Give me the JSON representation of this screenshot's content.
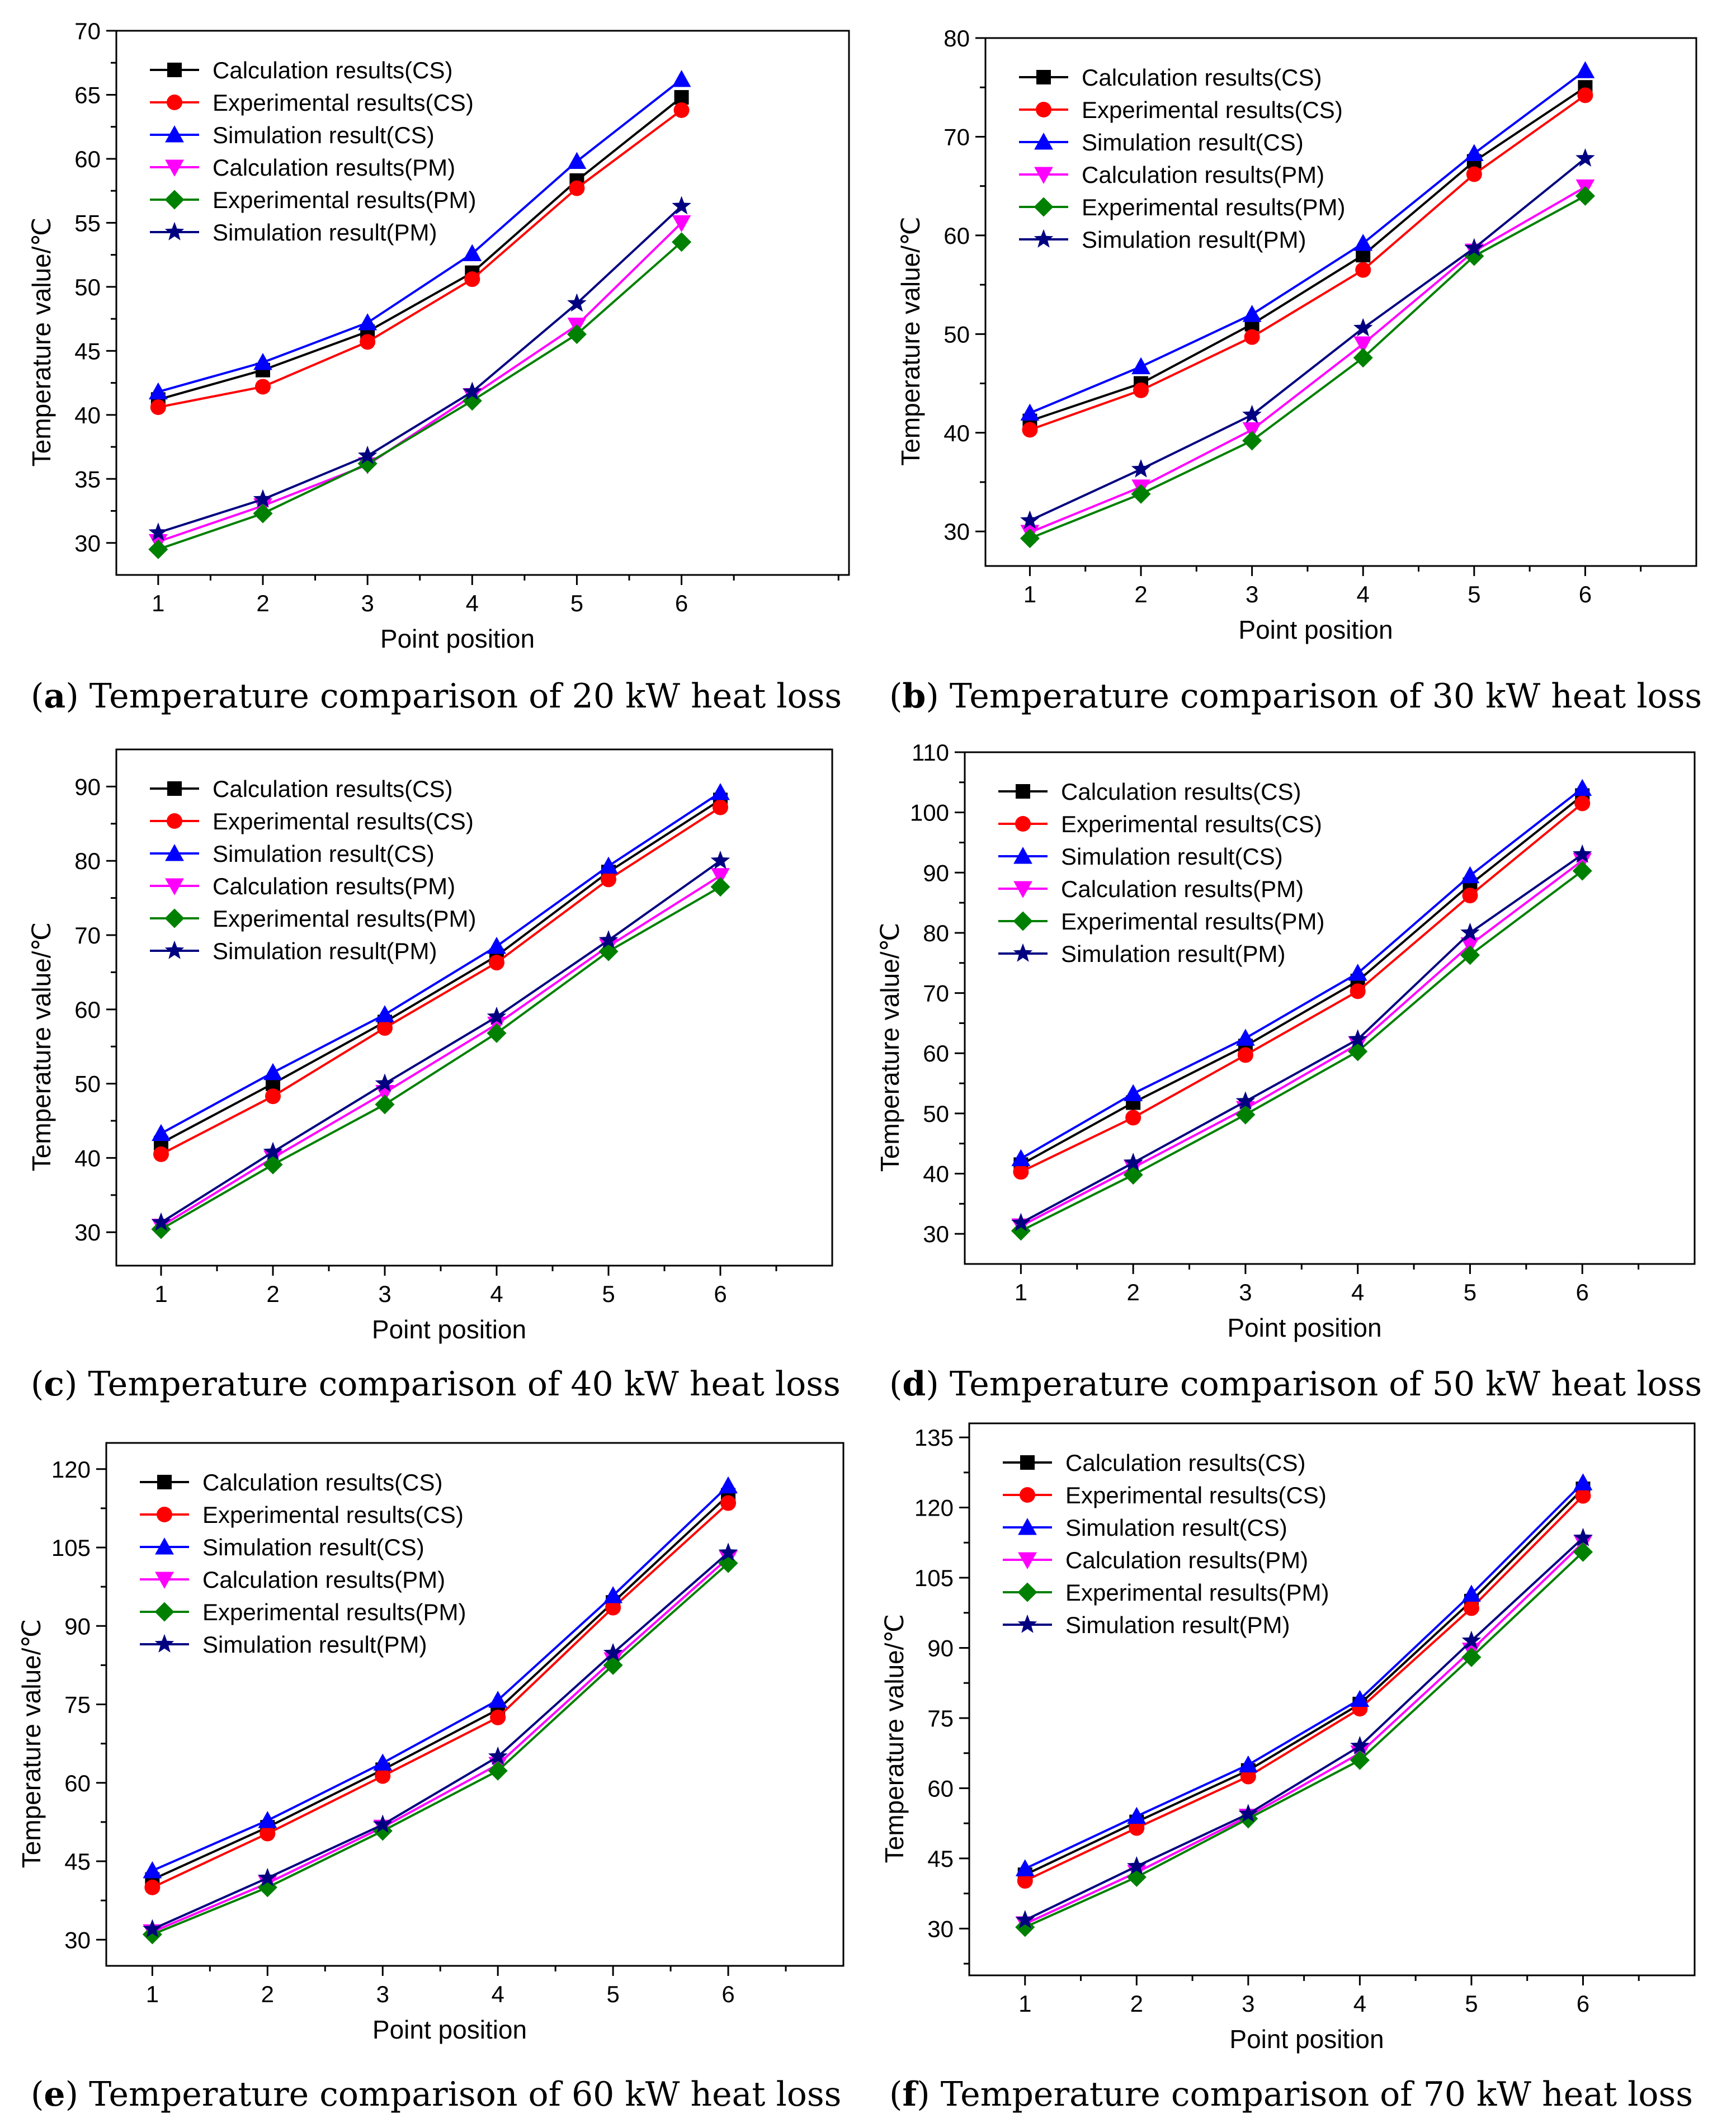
{
  "colors": {
    "calc_cs": "#000000",
    "exp_cs": "#ff0000",
    "sim_cs": "#0000ff",
    "calc_pm": "#ff00ff",
    "exp_pm": "#008000",
    "sim_pm": "#000080"
  },
  "chart_data": [
    {
      "type": "line",
      "caption_letter": "a",
      "caption_text": "Temperature comparison of 20 kW heat loss",
      "xlabel": "Point position",
      "ylabel": "Temperature value/℃",
      "x": [
        1,
        2,
        3,
        4,
        5,
        6
      ],
      "xlim": [
        0.6,
        7.6
      ],
      "ylim": [
        27.5,
        70
      ],
      "yticks": [
        30,
        35,
        40,
        45,
        50,
        55,
        60,
        65,
        70
      ],
      "legend_position": "top-left",
      "series": [
        {
          "name": "Calculation results(CS)",
          "marker": "square",
          "color_key": "calc_cs",
          "values": [
            41.2,
            43.5,
            46.5,
            51.1,
            58.3,
            64.8
          ]
        },
        {
          "name": "Experimental results(CS)",
          "marker": "circle",
          "color_key": "exp_cs",
          "values": [
            40.6,
            42.2,
            45.7,
            50.6,
            57.7,
            63.8
          ]
        },
        {
          "name": "Simulation result(CS)",
          "marker": "triangle-up",
          "color_key": "sim_cs",
          "values": [
            41.8,
            44.1,
            47.2,
            52.6,
            59.8,
            66.2
          ]
        },
        {
          "name": "Calculation results(PM)",
          "marker": "triangle-down",
          "color_key": "calc_pm",
          "values": [
            30.1,
            32.9,
            36.1,
            41.5,
            47.0,
            55.0
          ]
        },
        {
          "name": "Experimental results(PM)",
          "marker": "diamond",
          "color_key": "exp_pm",
          "values": [
            29.5,
            32.3,
            36.2,
            41.1,
            46.3,
            53.5
          ]
        },
        {
          "name": "Simulation result(PM)",
          "marker": "star",
          "color_key": "sim_pm",
          "values": [
            30.8,
            33.4,
            36.8,
            41.8,
            48.7,
            56.3
          ]
        }
      ]
    },
    {
      "type": "line",
      "caption_letter": "b",
      "caption_text": "Temperature comparison of 30 kW heat loss",
      "xlabel": "Point position",
      "ylabel": "Temperature value/℃",
      "x": [
        1,
        2,
        3,
        4,
        5,
        6
      ],
      "xlim": [
        0.6,
        7.0
      ],
      "ylim": [
        26.5,
        80
      ],
      "yticks": [
        30,
        40,
        50,
        60,
        70,
        80
      ],
      "legend_position": "top-left",
      "series": [
        {
          "name": "Calculation results(CS)",
          "marker": "square",
          "color_key": "calc_cs",
          "values": [
            41.2,
            45.0,
            51.0,
            58.0,
            67.5,
            75.0
          ]
        },
        {
          "name": "Experimental results(CS)",
          "marker": "circle",
          "color_key": "exp_cs",
          "values": [
            40.3,
            44.3,
            49.7,
            56.5,
            66.2,
            74.2
          ]
        },
        {
          "name": "Simulation result(CS)",
          "marker": "triangle-up",
          "color_key": "sim_cs",
          "values": [
            42.0,
            46.7,
            52.0,
            59.2,
            68.3,
            76.7
          ]
        },
        {
          "name": "Calculation results(PM)",
          "marker": "triangle-down",
          "color_key": "calc_pm",
          "values": [
            29.9,
            34.5,
            40.3,
            49.0,
            58.4,
            64.9
          ]
        },
        {
          "name": "Experimental results(PM)",
          "marker": "diamond",
          "color_key": "exp_pm",
          "values": [
            29.3,
            33.8,
            39.2,
            47.6,
            57.9,
            64.0
          ]
        },
        {
          "name": "Simulation result(PM)",
          "marker": "star",
          "color_key": "sim_pm",
          "values": [
            31.1,
            36.3,
            41.8,
            50.6,
            58.7,
            67.8
          ]
        }
      ]
    },
    {
      "type": "line",
      "caption_letter": "c",
      "caption_text": "Temperature comparison of 40 kW heat loss",
      "xlabel": "Point position",
      "ylabel": "Temperature value/℃",
      "x": [
        1,
        2,
        3,
        4,
        5,
        6
      ],
      "xlim": [
        0.6,
        7.0
      ],
      "ylim": [
        25.5,
        95
      ],
      "yticks": [
        30,
        40,
        50,
        60,
        70,
        80,
        90
      ],
      "legend_position": "top-left",
      "series": [
        {
          "name": "Calculation results(CS)",
          "marker": "square",
          "color_key": "calc_cs",
          "values": [
            42.0,
            50.0,
            58.3,
            67.2,
            78.5,
            88.2
          ]
        },
        {
          "name": "Experimental results(CS)",
          "marker": "circle",
          "color_key": "exp_cs",
          "values": [
            40.5,
            48.3,
            57.5,
            66.3,
            77.5,
            87.2
          ]
        },
        {
          "name": "Simulation result(CS)",
          "marker": "triangle-up",
          "color_key": "sim_cs",
          "values": [
            43.3,
            51.5,
            59.3,
            68.5,
            79.3,
            89.2
          ]
        },
        {
          "name": "Calculation results(PM)",
          "marker": "triangle-down",
          "color_key": "calc_pm",
          "values": [
            30.8,
            40.0,
            48.8,
            58.0,
            68.5,
            78.0
          ]
        },
        {
          "name": "Experimental results(PM)",
          "marker": "diamond",
          "color_key": "exp_pm",
          "values": [
            30.4,
            39.1,
            47.2,
            56.8,
            67.8,
            76.5
          ]
        },
        {
          "name": "Simulation result(PM)",
          "marker": "star",
          "color_key": "sim_pm",
          "values": [
            31.3,
            40.8,
            50.0,
            59.0,
            69.3,
            80.0
          ]
        }
      ]
    },
    {
      "type": "line",
      "caption_letter": "d",
      "caption_text": "Temperature comparison of 50 kW heat loss",
      "xlabel": "Point position",
      "ylabel": "Temperature value/℃",
      "x": [
        1,
        2,
        3,
        4,
        5,
        6
      ],
      "xlim": [
        0.5,
        7.0
      ],
      "ylim": [
        25,
        110
      ],
      "yticks": [
        30,
        40,
        50,
        60,
        70,
        80,
        90,
        100,
        110
      ],
      "legend_position": "top-left",
      "series": [
        {
          "name": "Calculation results(CS)",
          "marker": "square",
          "color_key": "calc_cs",
          "values": [
            41.5,
            51.8,
            61.2,
            72.0,
            88.0,
            102.8
          ]
        },
        {
          "name": "Experimental results(CS)",
          "marker": "circle",
          "color_key": "exp_cs",
          "values": [
            40.3,
            49.3,
            59.7,
            70.3,
            86.2,
            101.5
          ]
        },
        {
          "name": "Simulation result(CS)",
          "marker": "triangle-up",
          "color_key": "sim_cs",
          "values": [
            42.5,
            53.3,
            62.5,
            73.3,
            89.5,
            104.0
          ]
        },
        {
          "name": "Calculation results(PM)",
          "marker": "triangle-down",
          "color_key": "calc_pm",
          "values": [
            31.3,
            41.0,
            50.8,
            61.5,
            78.0,
            92.0
          ]
        },
        {
          "name": "Experimental results(PM)",
          "marker": "diamond",
          "color_key": "exp_pm",
          "values": [
            30.5,
            39.8,
            49.8,
            60.3,
            76.3,
            90.3
          ]
        },
        {
          "name": "Simulation result(PM)",
          "marker": "star",
          "color_key": "sim_pm",
          "values": [
            31.8,
            41.8,
            52.0,
            62.3,
            80.0,
            93.0
          ]
        }
      ]
    },
    {
      "type": "line",
      "caption_letter": "e",
      "caption_text": "Temperature comparison of 60 kW heat loss",
      "xlabel": "Point position",
      "ylabel": "Temperature value/℃",
      "x": [
        1,
        2,
        3,
        4,
        5,
        6
      ],
      "xlim": [
        0.6,
        7.0
      ],
      "ylim": [
        25,
        125
      ],
      "yticks": [
        30,
        45,
        60,
        75,
        90,
        105,
        120
      ],
      "legend_position": "top-left",
      "series": [
        {
          "name": "Calculation results(CS)",
          "marker": "square",
          "color_key": "calc_cs",
          "values": [
            41.5,
            51.5,
            62.5,
            74.0,
            94.5,
            115.0
          ]
        },
        {
          "name": "Experimental results(CS)",
          "marker": "circle",
          "color_key": "exp_cs",
          "values": [
            40.0,
            50.3,
            61.3,
            72.5,
            93.5,
            113.5
          ]
        },
        {
          "name": "Simulation result(CS)",
          "marker": "triangle-up",
          "color_key": "sim_cs",
          "values": [
            43.2,
            52.8,
            63.8,
            75.8,
            95.8,
            116.8
          ]
        },
        {
          "name": "Calculation results(PM)",
          "marker": "triangle-down",
          "color_key": "calc_pm",
          "values": [
            31.5,
            40.8,
            51.5,
            63.5,
            83.5,
            103.0
          ]
        },
        {
          "name": "Experimental results(PM)",
          "marker": "diamond",
          "color_key": "exp_pm",
          "values": [
            31.0,
            40.0,
            50.8,
            62.3,
            82.5,
            102.0
          ]
        },
        {
          "name": "Simulation result(PM)",
          "marker": "star",
          "color_key": "sim_pm",
          "values": [
            32.0,
            41.8,
            52.0,
            65.0,
            84.8,
            104.0
          ]
        }
      ]
    },
    {
      "type": "line",
      "caption_letter": "f",
      "caption_text": "Temperature comparison of 70 kW heat loss",
      "xlabel": "Point position",
      "ylabel": "Temperature value/℃",
      "x": [
        1,
        2,
        3,
        4,
        5,
        6
      ],
      "xlim": [
        0.5,
        7.0
      ],
      "ylim": [
        20,
        138
      ],
      "yticks": [
        30,
        45,
        60,
        75,
        90,
        105,
        120,
        135
      ],
      "legend_position": "top-left",
      "series": [
        {
          "name": "Calculation results(CS)",
          "marker": "square",
          "color_key": "calc_cs",
          "values": [
            41.5,
            52.8,
            63.8,
            78.0,
            100.0,
            124.0
          ]
        },
        {
          "name": "Experimental results(CS)",
          "marker": "circle",
          "color_key": "exp_cs",
          "values": [
            40.2,
            51.5,
            62.5,
            77.0,
            98.5,
            122.5
          ]
        },
        {
          "name": "Simulation result(CS)",
          "marker": "triangle-up",
          "color_key": "sim_cs",
          "values": [
            42.8,
            54.0,
            65.0,
            79.0,
            101.5,
            125.3
          ]
        },
        {
          "name": "Calculation results(PM)",
          "marker": "triangle-down",
          "color_key": "calc_pm",
          "values": [
            31.0,
            42.0,
            54.0,
            67.5,
            89.5,
            112.5
          ]
        },
        {
          "name": "Experimental results(PM)",
          "marker": "diamond",
          "color_key": "exp_pm",
          "values": [
            30.3,
            41.0,
            53.5,
            66.0,
            88.0,
            110.5
          ]
        },
        {
          "name": "Simulation result(PM)",
          "marker": "star",
          "color_key": "sim_pm",
          "values": [
            31.8,
            43.3,
            54.5,
            69.0,
            91.5,
            113.5
          ]
        }
      ]
    }
  ]
}
